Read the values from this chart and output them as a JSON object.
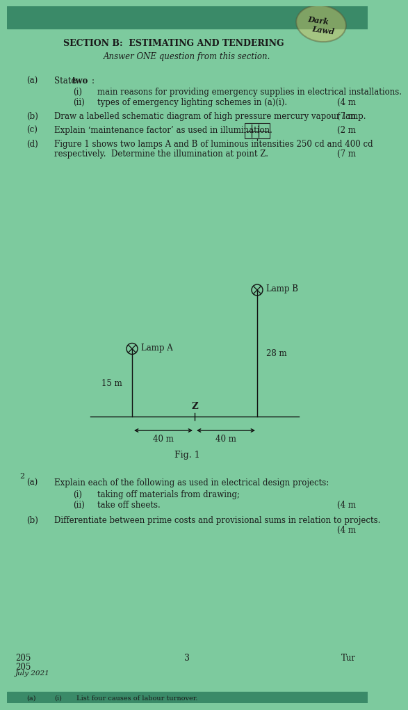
{
  "bg_color": "#7dca9e",
  "header_bg": "#3a8a68",
  "text_color": "#1a1a1a",
  "title": "SECTION B:  ESTIMATING AND TENDERING",
  "subtitle": "Answer ONE question from this section.",
  "q1a_label": "(a)",
  "q1a_text1": "State ",
  "q1a_bold": "two",
  "q1a_text2": ":",
  "q1a_i_label": "(i)",
  "q1a_i_text": "main reasons for providing emergency supplies in electrical installations.",
  "q1a_ii_label": "(ii)",
  "q1a_ii_text": "types of emergency lighting schemes in (a)(i).",
  "q1a_marks": "(4 m",
  "q1b_label": "(b)",
  "q1b_text": "Draw a labelled schematic diagram of high pressure mercury vapour lamp.",
  "q1b_marks": "(7 m",
  "q1c_label": "(c)",
  "q1c_text": "Explain ‘maintenance factor’ as used in illumination.",
  "q1c_marks": "(2 m",
  "q1d_label": "(d)",
  "q1d_text1": "Figure 1 shows two lamps A and B of luminous intensities 250 cd and 400 cd",
  "q1d_text2": "respectively.  Determine the illumination at point Z.",
  "q1d_marks": "(7 m",
  "fig_caption": "Fig. 1",
  "lamp_a_label": "Lamp A",
  "lamp_b_label": "Lamp B",
  "height_a": "15 m",
  "height_b": "28 m",
  "dist_left": "40 m",
  "dist_right": "40 m",
  "point_z": "Z",
  "q2_number": "2",
  "q2a_label": "(a)",
  "q2a_text": "Explain each of the following as used in electrical design projects:",
  "q2a_i_label": "(i)",
  "q2a_i_text": "taking off materials from drawing;",
  "q2a_ii_label": "(ii)",
  "q2a_ii_text": "take off sheets.",
  "q2a_marks": "(4 m",
  "q2b_label": "(b)",
  "q2b_text": "Differentiate between prime costs and provisional sums in relation to projects.",
  "q2b_marks": "(4 m",
  "footer_left1": "205",
  "footer_left2": "205",
  "footer_left3": "July 2021",
  "footer_center": "3",
  "footer_right": "Tur"
}
